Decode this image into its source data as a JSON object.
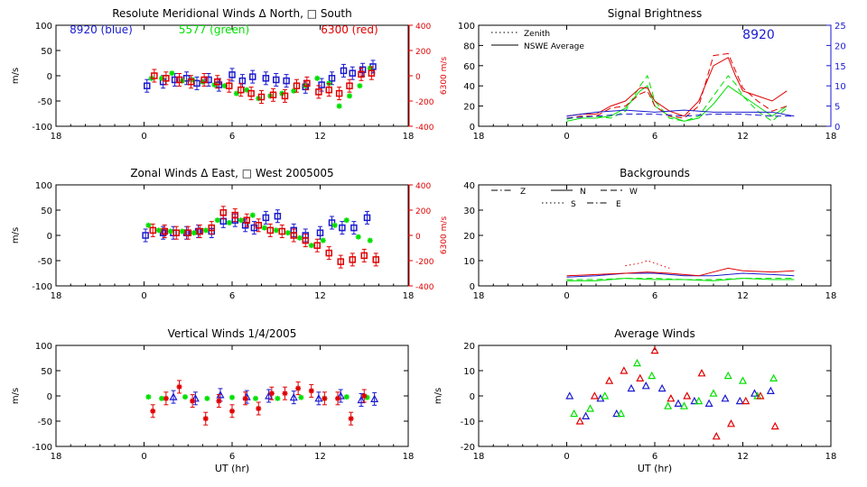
{
  "colors": {
    "blue": "#1a1ad0",
    "green": "#00e000",
    "red": "#e00000",
    "axis": "#000000"
  },
  "chart_data": [
    {
      "type": "scatter",
      "id": "meridional",
      "title": "Resolute Meridional Winds Δ North, □ South",
      "ylabel": "m/s",
      "ylabel_right": "6300 m/s",
      "xlabel": "",
      "xlim": [
        18,
        42
      ],
      "xticks": [
        18,
        24,
        30,
        36,
        42
      ],
      "xtick_labels": [
        "18",
        "0",
        "6",
        "12",
        "18"
      ],
      "ylim": [
        -100,
        100
      ],
      "yticks": [
        -100,
        -50,
        0,
        50,
        100
      ],
      "yticks_right": [
        -400,
        -200,
        0,
        200,
        400
      ],
      "annotations": [
        {
          "text": "8920 (blue)",
          "color": "blue"
        },
        {
          "text": "5577 (green)",
          "color": "green"
        },
        {
          "text": "6300 (red)",
          "color": "red"
        }
      ],
      "series": [
        {
          "color": "blue",
          "marker": "box",
          "errorbars": true,
          "x": [
            24.2,
            25.3,
            26.1,
            26.9,
            27.6,
            28.4,
            29.1,
            30.0,
            30.7,
            31.4,
            32.3,
            33.0,
            33.7,
            35.0,
            36.1,
            36.8,
            37.6,
            38.2,
            38.9,
            39.6
          ],
          "y": [
            -20,
            -12,
            -8,
            -5,
            -15,
            -8,
            -18,
            2,
            -10,
            -2,
            -5,
            -8,
            -10,
            -22,
            -18,
            -5,
            10,
            5,
            12,
            18
          ]
        },
        {
          "color": "green",
          "marker": "star",
          "errorbars": false,
          "x": [
            24.5,
            25.2,
            25.9,
            26.6,
            27.3,
            28.0,
            28.8,
            29.5,
            30.3,
            31.0,
            31.8,
            32.6,
            33.4,
            34.2,
            35.0,
            35.8,
            36.6,
            37.3,
            38.0,
            38.7,
            39.4
          ],
          "y": [
            -5,
            -5,
            5,
            -10,
            -8,
            -12,
            -18,
            -20,
            -35,
            -28,
            -45,
            -40,
            -35,
            -30,
            -20,
            -5,
            -15,
            -60,
            -40,
            -20,
            15
          ]
        },
        {
          "color": "red",
          "marker": "box",
          "errorbars": true,
          "x": [
            24.7,
            25.5,
            26.4,
            27.2,
            28.1,
            29.0,
            29.8,
            30.6,
            31.3,
            32.0,
            32.8,
            33.6,
            34.4,
            35.1,
            35.9,
            36.6,
            37.3,
            38.0,
            38.8,
            39.5
          ],
          "y": [
            0,
            -5,
            -8,
            -12,
            -8,
            -12,
            -20,
            -28,
            -35,
            -42,
            -38,
            -40,
            -20,
            -15,
            -32,
            -28,
            -35,
            -20,
            3,
            5
          ]
        }
      ]
    },
    {
      "type": "scatter",
      "id": "zonal",
      "title": "Zonal Winds Δ East, □ West 2005005",
      "ylabel": "m/s",
      "ylabel_right": "6300 m/s",
      "xlabel": "",
      "xlim": [
        18,
        42
      ],
      "xticks": [
        18,
        24,
        30,
        36,
        42
      ],
      "xtick_labels": [
        "18",
        "0",
        "6",
        "12",
        "18"
      ],
      "ylim": [
        -100,
        100
      ],
      "yticks": [
        -100,
        -50,
        0,
        50,
        100
      ],
      "yticks_right": [
        -400,
        -200,
        0,
        200,
        400
      ],
      "series": [
        {
          "color": "blue",
          "marker": "box",
          "errorbars": true,
          "x": [
            24.1,
            25.3,
            26.0,
            26.9,
            27.7,
            28.6,
            29.4,
            30.2,
            30.9,
            31.5,
            32.3,
            33.1,
            34.2,
            35.0,
            36.0,
            36.8,
            37.5,
            38.3,
            39.2
          ],
          "y": [
            0,
            5,
            5,
            5,
            8,
            8,
            28,
            30,
            20,
            15,
            35,
            38,
            10,
            0,
            5,
            25,
            15,
            15,
            35
          ]
        },
        {
          "color": "green",
          "marker": "star",
          "errorbars": false,
          "x": [
            24.3,
            25.0,
            25.8,
            26.6,
            27.4,
            28.2,
            29.0,
            29.8,
            30.6,
            31.4,
            32.2,
            33.0,
            33.8,
            34.6,
            35.4,
            36.2,
            37.0,
            37.8,
            38.6,
            39.4
          ],
          "y": [
            20,
            10,
            8,
            8,
            5,
            10,
            30,
            25,
            30,
            40,
            15,
            10,
            5,
            -5,
            -20,
            -10,
            20,
            30,
            -3,
            -10
          ]
        },
        {
          "color": "red",
          "marker": "box",
          "errorbars": true,
          "x": [
            24.6,
            25.4,
            26.2,
            27.0,
            27.8,
            28.6,
            29.4,
            30.2,
            31.0,
            31.8,
            32.6,
            33.4,
            34.2,
            35.0,
            35.8,
            36.6,
            37.4,
            38.2,
            39.0,
            39.8
          ],
          "y": [
            10,
            8,
            5,
            5,
            8,
            15,
            45,
            40,
            30,
            20,
            10,
            8,
            0,
            -10,
            -20,
            -35,
            -52,
            -48,
            -40,
            -48
          ]
        }
      ]
    },
    {
      "type": "scatter",
      "id": "vertical",
      "title": "Vertical Winds 1/4/2005",
      "ylabel": "m/s",
      "xlabel": "UT (hr)",
      "xlim": [
        18,
        42
      ],
      "xticks": [
        18,
        24,
        30,
        36,
        42
      ],
      "xtick_labels": [
        "18",
        "0",
        "6",
        "12",
        "18"
      ],
      "ylim": [
        -100,
        100
      ],
      "yticks": [
        -100,
        -50,
        0,
        50,
        100
      ],
      "series": [
        {
          "color": "blue",
          "marker": "triangle",
          "errorbars": true,
          "x": [
            26.0,
            27.5,
            29.2,
            31.0,
            32.5,
            34.2,
            35.9,
            37.4,
            38.8,
            39.7
          ],
          "y": [
            -2,
            -5,
            2,
            -2,
            0,
            -3,
            -5,
            0,
            -8,
            -6
          ]
        },
        {
          "color": "green",
          "marker": "star",
          "errorbars": false,
          "x": [
            24.3,
            25.2,
            26.8,
            28.3,
            30.0,
            31.6,
            33.1,
            34.7,
            36.3,
            37.8,
            39.2
          ],
          "y": [
            -2,
            -5,
            -2,
            -5,
            -3,
            -5,
            -5,
            -3,
            -5,
            -2,
            -3
          ]
        },
        {
          "color": "red",
          "marker": "star",
          "errorbars": true,
          "x": [
            24.6,
            25.5,
            26.4,
            27.3,
            28.2,
            29.1,
            30.0,
            30.9,
            31.8,
            32.7,
            33.6,
            34.5,
            35.4,
            36.3,
            37.2,
            38.1,
            39.0
          ],
          "y": [
            -30,
            -5,
            18,
            -10,
            -45,
            -10,
            -30,
            -5,
            -25,
            5,
            5,
            15,
            10,
            -5,
            -5,
            -45,
            0
          ]
        }
      ]
    },
    {
      "type": "line",
      "id": "brightness",
      "title": "Signal Brightness",
      "ylabel": "",
      "xlabel": "",
      "xlim": [
        18,
        42
      ],
      "xticks": [
        18,
        24,
        30,
        36,
        42
      ],
      "xtick_labels": [
        "18",
        "0",
        "6",
        "12",
        "18"
      ],
      "ylim": [
        0,
        100
      ],
      "yticks": [
        0,
        20,
        40,
        60,
        80,
        100
      ],
      "ylim_right": [
        0,
        25
      ],
      "yticks_right": [
        0,
        5,
        10,
        15,
        20,
        25
      ],
      "legend": [
        {
          "label": "Zenith",
          "style": "dotted"
        },
        {
          "label": "NSWE Average",
          "style": "solid"
        }
      ],
      "annotation": "8920",
      "series": [
        {
          "color": "green",
          "style": "solid",
          "x": [
            24,
            25,
            26,
            27,
            28,
            29,
            29.5,
            30,
            31,
            32,
            33,
            34,
            35,
            35.5,
            36,
            37,
            38,
            39
          ],
          "y": [
            5,
            8,
            8,
            10,
            18,
            35,
            40,
            20,
            10,
            5,
            8,
            22,
            40,
            35,
            30,
            20,
            10,
            20
          ]
        },
        {
          "color": "green",
          "style": "dashed",
          "x": [
            24,
            25,
            26,
            27,
            28,
            29,
            29.5,
            30,
            31,
            32,
            33,
            34,
            35,
            35.5,
            36,
            37,
            38,
            39
          ],
          "y": [
            7,
            10,
            10,
            8,
            15,
            40,
            50,
            25,
            8,
            5,
            10,
            30,
            50,
            42,
            30,
            15,
            5,
            18
          ]
        },
        {
          "color": "red",
          "style": "solid",
          "x": [
            24,
            25,
            26,
            27,
            28,
            29,
            29.5,
            30,
            31,
            32,
            33,
            34,
            35,
            35.5,
            36,
            37,
            38,
            39
          ],
          "y": [
            10,
            12,
            12,
            20,
            25,
            38,
            38,
            25,
            15,
            10,
            25,
            60,
            68,
            50,
            35,
            30,
            25,
            35
          ]
        },
        {
          "color": "red",
          "style": "dashed",
          "x": [
            24,
            25,
            26,
            27,
            28,
            29,
            29.5,
            30,
            31,
            32,
            33,
            34,
            35,
            35.5,
            36,
            37,
            38,
            39
          ],
          "y": [
            8,
            10,
            10,
            18,
            20,
            32,
            35,
            20,
            10,
            8,
            20,
            70,
            72,
            55,
            38,
            25,
            15,
            20
          ]
        },
        {
          "color": "blue",
          "style": "solid",
          "x": [
            24,
            26,
            28,
            30,
            32,
            34,
            36,
            38,
            39.5
          ],
          "y": [
            2.5,
            3.5,
            4,
            3.5,
            4,
            3.5,
            3.5,
            3.5,
            2.5
          ],
          "axis": "right"
        },
        {
          "color": "blue",
          "style": "dashed",
          "x": [
            24,
            26,
            28,
            30,
            32,
            34,
            36,
            38,
            39.5
          ],
          "y": [
            2,
            2.5,
            3,
            3,
            2.5,
            3,
            3,
            2.5,
            2.5
          ],
          "axis": "right"
        }
      ]
    },
    {
      "type": "line",
      "id": "backgrounds",
      "title": "Backgrounds",
      "ylabel": "",
      "xlabel": "",
      "xlim": [
        18,
        42
      ],
      "xticks": [
        18,
        24,
        30,
        36,
        42
      ],
      "xtick_labels": [
        "18",
        "0",
        "6",
        "12",
        "18"
      ],
      "ylim": [
        0,
        40
      ],
      "yticks": [
        0,
        10,
        20,
        30,
        40
      ],
      "legend": [
        {
          "label": "Z",
          "style": "dashdot"
        },
        {
          "label": "N",
          "style": "solid"
        },
        {
          "label": "W",
          "style": "dashed"
        },
        {
          "label": "S",
          "style": "dotted"
        },
        {
          "label": "E",
          "style": "dashdot"
        }
      ],
      "series": [
        {
          "color": "blue",
          "style": "solid",
          "x": [
            24,
            26,
            28,
            30,
            32,
            34,
            36,
            38,
            39.5
          ],
          "y": [
            3.5,
            4,
            5,
            5,
            4,
            4,
            5,
            4.5,
            4
          ]
        },
        {
          "color": "red",
          "style": "solid",
          "x": [
            24,
            26,
            28,
            29.5,
            31,
            33,
            35,
            36,
            38,
            39.5
          ],
          "y": [
            4,
            4.5,
            5,
            5.5,
            5,
            4,
            7,
            6,
            5.5,
            6
          ]
        },
        {
          "color": "red",
          "style": "dotted",
          "x": [
            28,
            29,
            29.5,
            30,
            31
          ],
          "y": [
            8,
            9,
            10,
            9,
            7
          ]
        },
        {
          "color": "green",
          "style": "solid",
          "x": [
            24,
            26,
            28,
            30,
            32,
            34,
            36,
            38,
            39.5
          ],
          "y": [
            2,
            2,
            3,
            2.5,
            2.5,
            2,
            3,
            2.5,
            2.5
          ]
        },
        {
          "color": "green",
          "style": "dashed",
          "x": [
            24,
            26,
            28,
            30,
            32,
            34,
            36,
            38,
            39.5
          ],
          "y": [
            2.5,
            2.5,
            3,
            3,
            2.5,
            2.5,
            3,
            3,
            3
          ]
        }
      ]
    },
    {
      "type": "scatter",
      "id": "average",
      "title": "Average Winds",
      "ylabel": "m/s",
      "xlabel": "UT (hr)",
      "xlim": [
        18,
        42
      ],
      "xticks": [
        18,
        24,
        30,
        36,
        42
      ],
      "xtick_labels": [
        "18",
        "0",
        "6",
        "12",
        "18"
      ],
      "ylim": [
        -20,
        20
      ],
      "yticks": [
        -20,
        -10,
        0,
        10,
        20
      ],
      "series": [
        {
          "color": "blue",
          "marker": "triangle",
          "x": [
            24.2,
            25.3,
            26.3,
            27.4,
            28.4,
            29.4,
            30.5,
            31.6,
            32.7,
            33.7,
            34.8,
            35.8,
            36.8,
            37.9
          ],
          "y": [
            0,
            -8,
            -1,
            -7,
            3,
            4,
            3,
            -3,
            -2,
            -3,
            -1,
            -2,
            1,
            2
          ]
        },
        {
          "color": "green",
          "marker": "triangle",
          "x": [
            24.5,
            25.6,
            26.6,
            27.7,
            28.8,
            29.8,
            30.9,
            32.0,
            33.0,
            34.0,
            35.0,
            36.0,
            37.0,
            38.1
          ],
          "y": [
            -7,
            -5,
            0,
            -7,
            13,
            8,
            -4,
            -4,
            -2,
            1,
            8,
            6,
            0,
            7
          ]
        },
        {
          "color": "red",
          "marker": "triangle",
          "x": [
            24.9,
            25.9,
            26.9,
            27.9,
            29.0,
            30.0,
            31.1,
            32.2,
            33.2,
            34.2,
            35.2,
            36.2,
            37.2,
            38.2
          ],
          "y": [
            -10,
            0,
            6,
            10,
            7,
            18,
            -1,
            0,
            9,
            -16,
            -11,
            -2,
            0,
            -12
          ]
        }
      ]
    }
  ]
}
